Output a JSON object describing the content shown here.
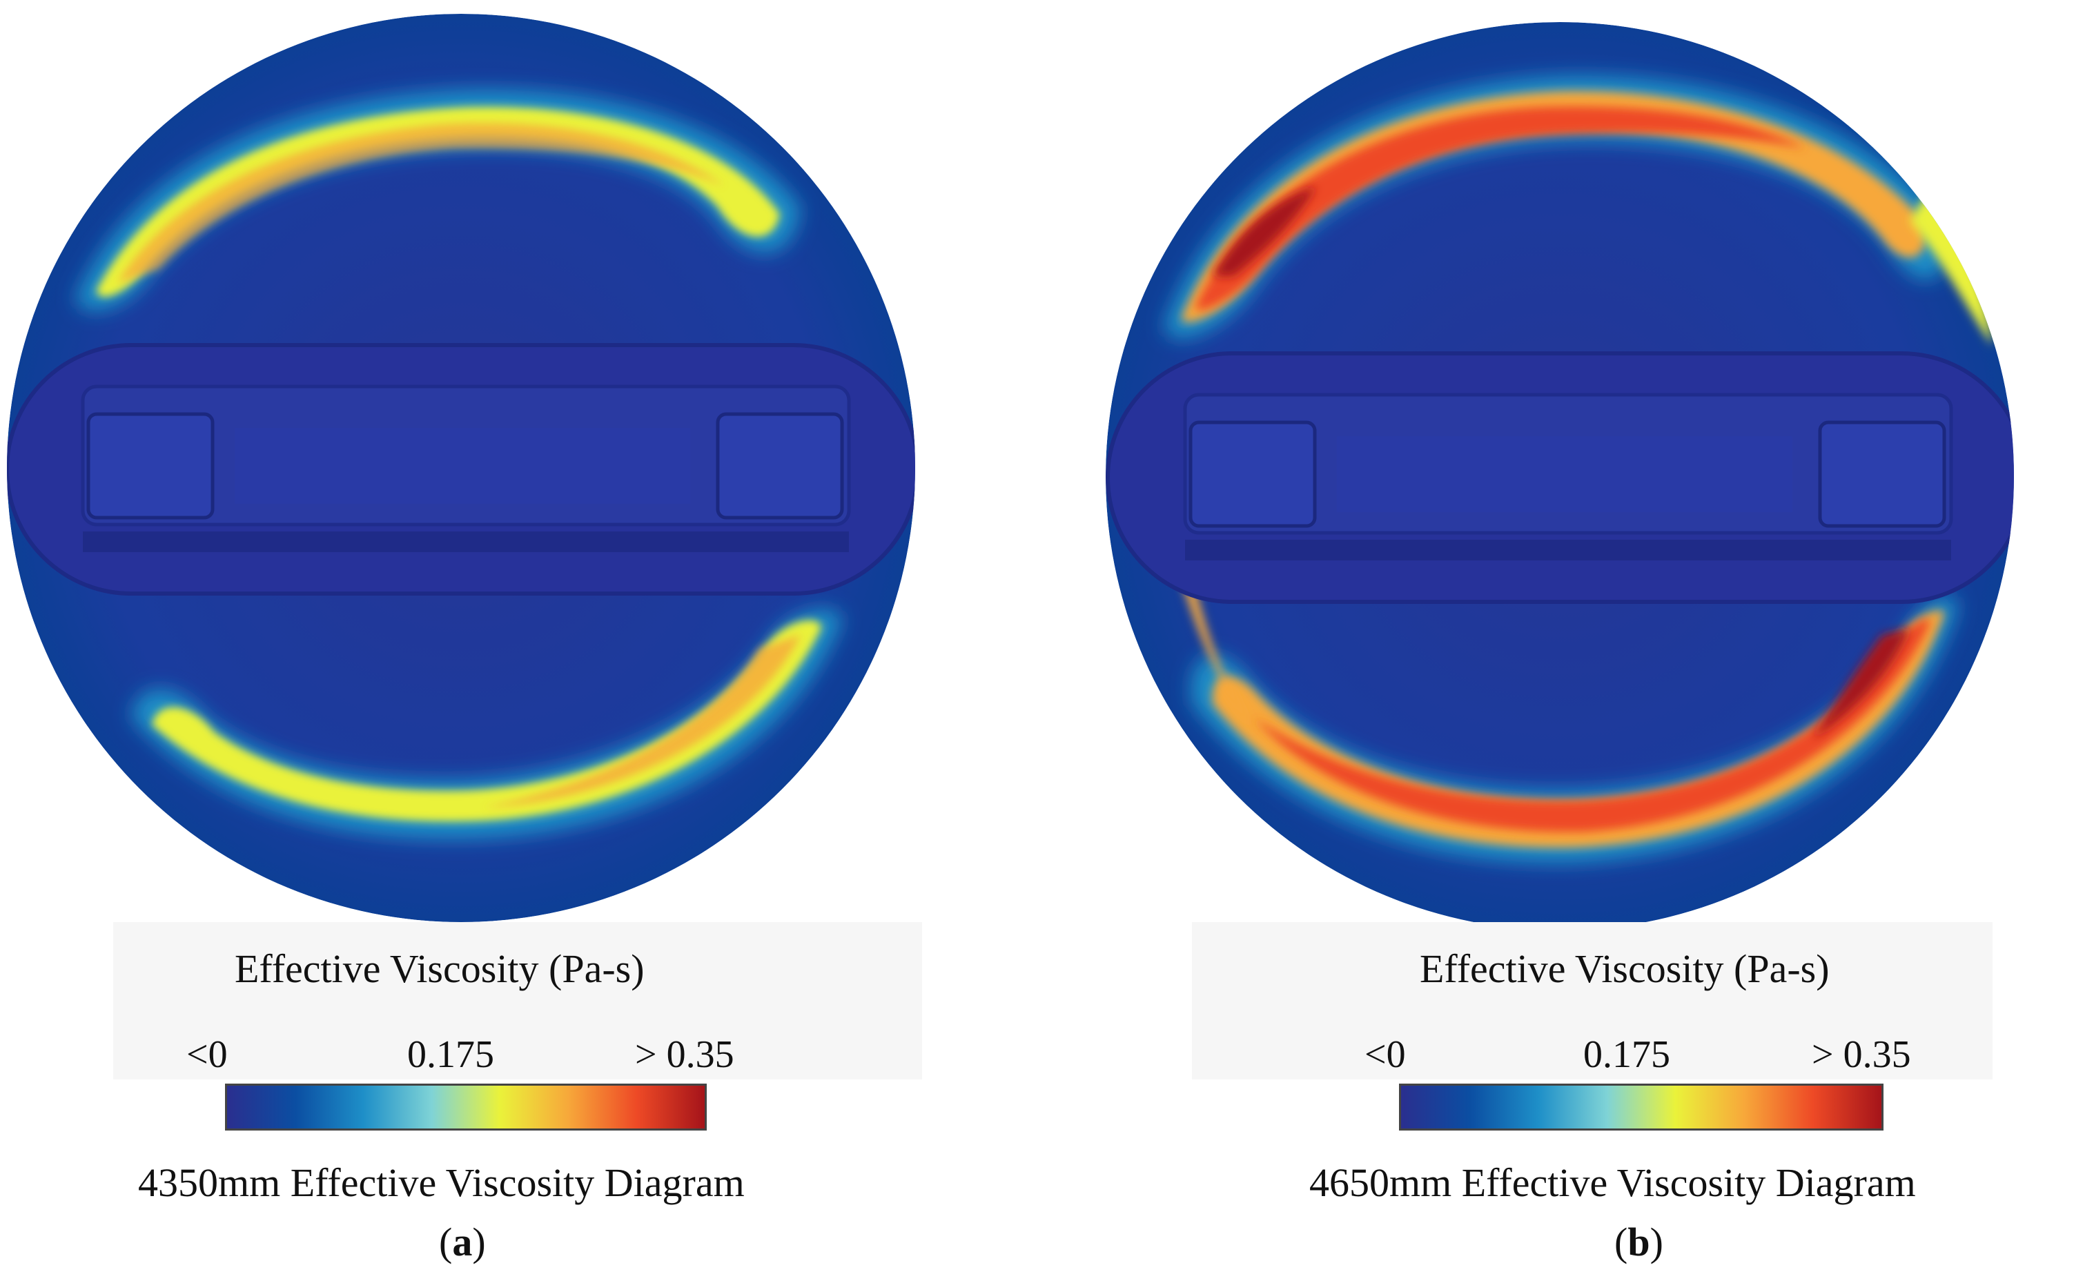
{
  "colormap": [
    "#2a2f8f",
    "#0b4ea2",
    "#1e8fc8",
    "#7fd3d6",
    "#eaf23a",
    "#f7a83a",
    "#ee4a26",
    "#a5141a"
  ],
  "panels": [
    {
      "id": "a",
      "legend_title": "Effective Viscosity (Pa-s)",
      "tick_min": "<0",
      "tick_mid": "0.175",
      "tick_max": "> 0.35",
      "caption": "4350mm Effective Viscosity Diagram",
      "sublabel_open": "(",
      "sublabel_letter": "a",
      "sublabel_close": ")"
    },
    {
      "id": "b",
      "legend_title": "Effective Viscosity (Pa-s)",
      "tick_min": "<0",
      "tick_mid": "0.175",
      "tick_max": "> 0.35",
      "caption": "4650mm Effective Viscosity Diagram",
      "sublabel_open": "(",
      "sublabel_letter": "b",
      "sublabel_close": ")"
    }
  ]
}
